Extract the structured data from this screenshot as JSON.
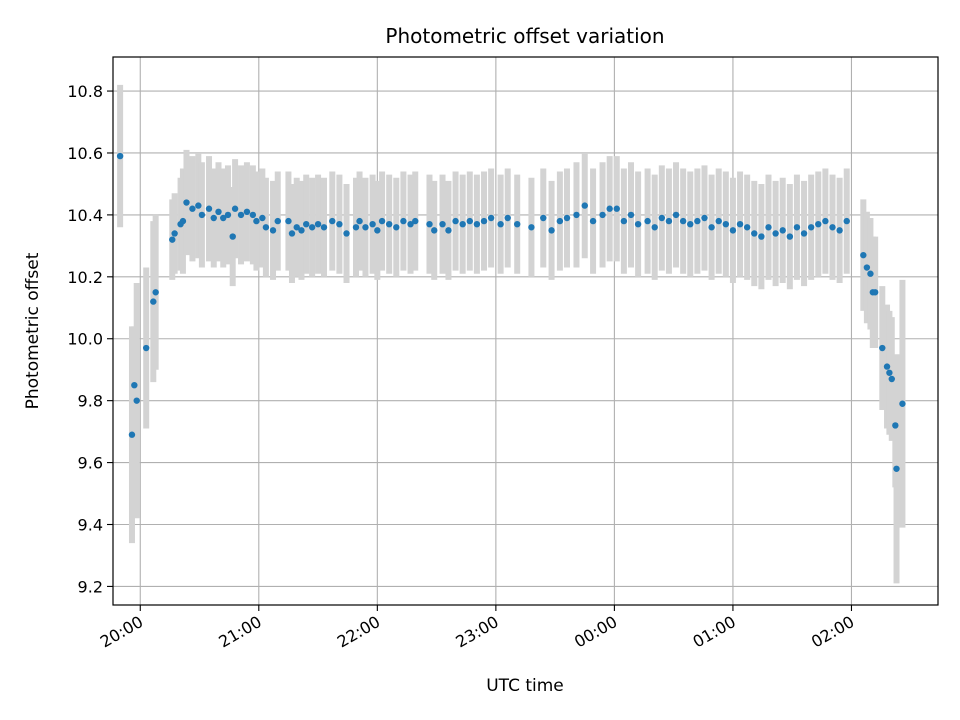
{
  "chart_data": {
    "type": "scatter",
    "title": "Photometric offset variation",
    "xlabel": "UTC time",
    "ylabel": "Photometric offset",
    "grid": true,
    "x_unit": "UTC time (hours past 00:00 on the first day; values above 24 are after midnight)",
    "xlim": [
      19.77,
      26.73
    ],
    "ylim": [
      9.14,
      10.91
    ],
    "x_ticks": [
      20,
      21,
      22,
      23,
      24,
      25,
      26
    ],
    "x_tick_labels": [
      "20:00",
      "21:00",
      "22:00",
      "23:00",
      "00:00",
      "01:00",
      "02:00"
    ],
    "y_ticks": [
      9.2,
      9.4,
      9.6,
      9.8,
      10.0,
      10.2,
      10.4,
      10.6,
      10.8
    ],
    "y_tick_labels": [
      "9.2",
      "9.4",
      "9.6",
      "9.8",
      "10.0",
      "10.2",
      "10.4",
      "10.6",
      "10.8"
    ],
    "marker_color": "#1f77b4",
    "errorbar_color": "#d3d3d3",
    "series": [
      {
        "points": [
          [
            19.83,
            10.59,
            0.23
          ],
          [
            19.93,
            9.69,
            0.35
          ],
          [
            19.95,
            9.85,
            0.19
          ],
          [
            19.97,
            9.8,
            0.38
          ],
          [
            20.05,
            9.97,
            0.26
          ],
          [
            20.11,
            10.12,
            0.26
          ],
          [
            20.13,
            10.15,
            0.25
          ],
          [
            20.27,
            10.32,
            0.13
          ],
          [
            20.29,
            10.34,
            0.13
          ],
          [
            20.34,
            10.37,
            0.15
          ],
          [
            20.36,
            10.38,
            0.17
          ],
          [
            20.39,
            10.44,
            0.17
          ],
          [
            20.44,
            10.42,
            0.17
          ],
          [
            20.49,
            10.43,
            0.17
          ],
          [
            20.52,
            10.4,
            0.17
          ],
          [
            20.58,
            10.42,
            0.17
          ],
          [
            20.62,
            10.39,
            0.16
          ],
          [
            20.66,
            10.41,
            0.16
          ],
          [
            20.7,
            10.39,
            0.16
          ],
          [
            20.74,
            10.4,
            0.16
          ],
          [
            20.78,
            10.33,
            0.16
          ],
          [
            20.8,
            10.42,
            0.16
          ],
          [
            20.85,
            10.4,
            0.16
          ],
          [
            20.9,
            10.41,
            0.16
          ],
          [
            20.95,
            10.4,
            0.16
          ],
          [
            20.98,
            10.38,
            0.16
          ],
          [
            21.03,
            10.39,
            0.16
          ],
          [
            21.06,
            10.36,
            0.16
          ],
          [
            21.12,
            10.35,
            0.16
          ],
          [
            21.16,
            10.38,
            0.16
          ],
          [
            21.25,
            10.38,
            0.16
          ],
          [
            21.28,
            10.34,
            0.16
          ],
          [
            21.32,
            10.36,
            0.16
          ],
          [
            21.36,
            10.35,
            0.16
          ],
          [
            21.4,
            10.37,
            0.16
          ],
          [
            21.45,
            10.36,
            0.16
          ],
          [
            21.5,
            10.37,
            0.16
          ],
          [
            21.55,
            10.36,
            0.16
          ],
          [
            21.62,
            10.38,
            0.16
          ],
          [
            21.68,
            10.37,
            0.16
          ],
          [
            21.74,
            10.34,
            0.16
          ],
          [
            21.82,
            10.36,
            0.16
          ],
          [
            21.85,
            10.38,
            0.16
          ],
          [
            21.9,
            10.36,
            0.16
          ],
          [
            21.96,
            10.37,
            0.16
          ],
          [
            22.0,
            10.35,
            0.16
          ],
          [
            22.04,
            10.38,
            0.16
          ],
          [
            22.1,
            10.37,
            0.16
          ],
          [
            22.16,
            10.36,
            0.16
          ],
          [
            22.22,
            10.38,
            0.16
          ],
          [
            22.28,
            10.37,
            0.16
          ],
          [
            22.32,
            10.38,
            0.16
          ],
          [
            22.44,
            10.37,
            0.16
          ],
          [
            22.48,
            10.35,
            0.16
          ],
          [
            22.55,
            10.37,
            0.16
          ],
          [
            22.6,
            10.35,
            0.16
          ],
          [
            22.66,
            10.38,
            0.16
          ],
          [
            22.72,
            10.37,
            0.16
          ],
          [
            22.78,
            10.38,
            0.16
          ],
          [
            22.84,
            10.37,
            0.16
          ],
          [
            22.9,
            10.38,
            0.16
          ],
          [
            22.96,
            10.39,
            0.16
          ],
          [
            23.04,
            10.37,
            0.16
          ],
          [
            23.1,
            10.39,
            0.16
          ],
          [
            23.18,
            10.37,
            0.16
          ],
          [
            23.3,
            10.36,
            0.16
          ],
          [
            23.4,
            10.39,
            0.16
          ],
          [
            23.47,
            10.35,
            0.16
          ],
          [
            23.54,
            10.38,
            0.16
          ],
          [
            23.6,
            10.39,
            0.16
          ],
          [
            23.68,
            10.4,
            0.17
          ],
          [
            23.75,
            10.43,
            0.17
          ],
          [
            23.82,
            10.38,
            0.17
          ],
          [
            23.9,
            10.4,
            0.17
          ],
          [
            23.96,
            10.42,
            0.17
          ],
          [
            24.02,
            10.42,
            0.17
          ],
          [
            24.08,
            10.38,
            0.17
          ],
          [
            24.14,
            10.4,
            0.17
          ],
          [
            24.2,
            10.37,
            0.17
          ],
          [
            24.28,
            10.38,
            0.17
          ],
          [
            24.34,
            10.36,
            0.17
          ],
          [
            24.4,
            10.39,
            0.17
          ],
          [
            24.46,
            10.38,
            0.17
          ],
          [
            24.52,
            10.4,
            0.17
          ],
          [
            24.58,
            10.38,
            0.17
          ],
          [
            24.64,
            10.37,
            0.17
          ],
          [
            24.7,
            10.38,
            0.17
          ],
          [
            24.76,
            10.39,
            0.17
          ],
          [
            24.82,
            10.36,
            0.17
          ],
          [
            24.88,
            10.38,
            0.17
          ],
          [
            24.94,
            10.37,
            0.17
          ],
          [
            25.0,
            10.35,
            0.17
          ],
          [
            25.06,
            10.37,
            0.17
          ],
          [
            25.12,
            10.36,
            0.17
          ],
          [
            25.18,
            10.34,
            0.17
          ],
          [
            25.24,
            10.33,
            0.17
          ],
          [
            25.3,
            10.36,
            0.17
          ],
          [
            25.36,
            10.34,
            0.17
          ],
          [
            25.42,
            10.35,
            0.17
          ],
          [
            25.48,
            10.33,
            0.17
          ],
          [
            25.54,
            10.36,
            0.17
          ],
          [
            25.6,
            10.34,
            0.17
          ],
          [
            25.66,
            10.36,
            0.17
          ],
          [
            25.72,
            10.37,
            0.17
          ],
          [
            25.78,
            10.38,
            0.17
          ],
          [
            25.84,
            10.36,
            0.17
          ],
          [
            25.9,
            10.35,
            0.17
          ],
          [
            25.96,
            10.38,
            0.17
          ],
          [
            26.1,
            10.27,
            0.18
          ],
          [
            26.13,
            10.23,
            0.18
          ],
          [
            26.16,
            10.21,
            0.18
          ],
          [
            26.18,
            10.15,
            0.18
          ],
          [
            26.2,
            10.15,
            0.18
          ],
          [
            26.26,
            9.97,
            0.2
          ],
          [
            26.3,
            9.91,
            0.2
          ],
          [
            26.32,
            9.89,
            0.2
          ],
          [
            26.34,
            9.87,
            0.2
          ],
          [
            26.37,
            9.72,
            0.2
          ],
          [
            26.38,
            9.58,
            0.37
          ],
          [
            26.43,
            9.79,
            0.4
          ]
        ]
      }
    ]
  }
}
